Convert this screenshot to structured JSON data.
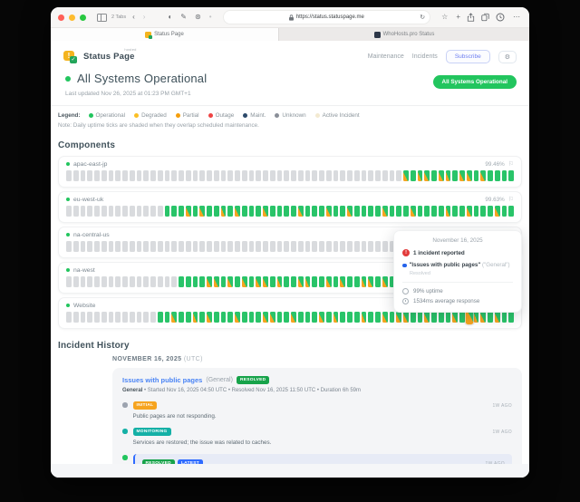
{
  "browser": {
    "tabs_count": "2 Tabs",
    "url": "https://status.statuspage.me",
    "active_tab": "Status Page",
    "inactive_tab": "WhoHosts.pro Status"
  },
  "icons": {
    "back": "‹",
    "forward": "›",
    "reader": "◐",
    "pen": "✎",
    "extensions": "⊛",
    "extension_dot": "•",
    "refresh": "↻",
    "star": "☆",
    "plus": "+",
    "more": "⋯",
    "gear": "⚙",
    "flag": "⚐",
    "check": "✓",
    "exclaim": "!"
  },
  "header": {
    "brand": "Status Page",
    "brand_tag": "hosted",
    "nav_maintenance": "Maintenance",
    "nav_incidents": "Incidents",
    "subscribe_label": "Subscribe",
    "status_pill": "All Systems Operational"
  },
  "status": {
    "title": "All Systems Operational",
    "last_updated": "Last updated Nov 26, 2025 at 01:23 PM GMT+1"
  },
  "legend": {
    "label": "Legend:",
    "items": [
      {
        "label": "Operational",
        "color": "#22c55e"
      },
      {
        "label": "Degraded",
        "color": "#fbbf24"
      },
      {
        "label": "Partial",
        "color": "#f59e0b"
      },
      {
        "label": "Outage",
        "color": "#ef4444"
      },
      {
        "label": "Maint.",
        "color": "#2d4a6b"
      },
      {
        "label": "Unknown",
        "color": "#8a8f98"
      },
      {
        "label": "Active Incident",
        "color": "#f3ead1"
      }
    ],
    "note": "Note: Daily uptime ticks are shaded when they overlap scheduled maintenance."
  },
  "components": {
    "title": "Components",
    "rows": [
      {
        "name": "apac-east-jp",
        "uptime": "99.46%",
        "ticks": "UUUUUUUUUUUUUUUUUUUUUUUUUUUUUUUUUUUUUUUUUUUUUUUUMGMMGMMGMMGMGGGG"
      },
      {
        "name": "eu-west-uk",
        "uptime": "99.63%",
        "ticks": "UUUUUUUUUUUUUUGGGMGMGGMGMGGGMGGGGMGGGMGGMGGGGMGGGMGGGGMGGMGGGMGG"
      },
      {
        "name": "na-central-us",
        "uptime": "",
        "ticks": "UUUUUUUUUUUUUUUUUUUUUUUUUUUUUUUUUUUUUUUUUUUUUUUUUUUUUUUUUUUUUUGG"
      },
      {
        "name": "na-west",
        "uptime": "",
        "ticks": "UUUUUUUUUUUUUUUUGGGGMMGMGMGMMGMGGMMGGMGMGGMMGMGGMGMMGGMGMGGMGMGG"
      },
      {
        "name": "Website",
        "uptime": "",
        "ticks": "UUUUUUUUUUUUUGGMGGMGMGGGMGGGMMGGMGGGMGMGGGMGGMGMMGGMGGGMGHMMGMGG"
      }
    ]
  },
  "tooltip": {
    "date": "November 16, 2025",
    "incident_count": "1 incident reported",
    "incident_title": "\"Issues with public pages\"",
    "incident_suffix": "(\"General\")",
    "incident_status": "Resolved",
    "uptime": "99% uptime",
    "response": "1534ms average response"
  },
  "incident_history": {
    "title": "Incident History",
    "date_heading": "NOVEMBER 16, 2025",
    "date_suffix": "(UTC)",
    "incident": {
      "title": "Issues with public pages",
      "scope": "(General)",
      "badge": "RESOLVED",
      "meta_bold": "General",
      "meta": "• Started Nov 16, 2025 04:50 UTC • Resolved Nov 16, 2025 11:50 UTC • Duration 6h 59m",
      "updates": [
        {
          "type": "initial",
          "time": "1W AGO",
          "text": "Public pages are not responding.",
          "badges": [
            {
              "type": "initial",
              "text": "INITIAL"
            }
          ]
        },
        {
          "type": "monitoring",
          "time": "1W AGO",
          "text": "Services are restored; the issue was related to caches.",
          "badges": [
            {
              "type": "monitoring",
              "text": "MONITORING"
            }
          ]
        },
        {
          "type": "resolved",
          "time": "1W AGO",
          "text": "The issue seems to be fixed.",
          "badges": [
            {
              "type": "resolved",
              "text": "RESOLVED"
            },
            {
              "type": "latest",
              "text": "LATEST"
            }
          ]
        }
      ]
    }
  },
  "colors": {
    "operational_green": "#22c55e",
    "tick_green": "#29c469",
    "tick_gray": "#d9dbde",
    "maint_orange": "#f6a41f",
    "outage_red": "#ef4444",
    "link_blue": "#4a84f5",
    "latest_blue": "#2f6bff"
  }
}
